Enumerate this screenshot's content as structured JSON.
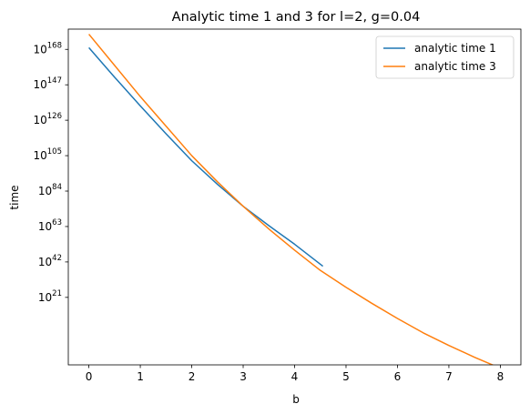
{
  "chart_data": {
    "type": "line",
    "title": "Analytic time 1 and 3 for l=2, g=0.04",
    "xlabel": "b",
    "ylabel": "time",
    "x_scale": "linear",
    "y_scale": "log",
    "xlim": [
      -0.4,
      8.4
    ],
    "ylim_log10": [
      -19,
      180
    ],
    "x_ticks": [
      0,
      1,
      2,
      3,
      4,
      5,
      6,
      7,
      8
    ],
    "y_ticks": [
      {
        "base": "10",
        "exp": "21",
        "value_log10": 21
      },
      {
        "base": "10",
        "exp": "42",
        "value_log10": 42
      },
      {
        "base": "10",
        "exp": "63",
        "value_log10": 63
      },
      {
        "base": "10",
        "exp": "84",
        "value_log10": 84
      },
      {
        "base": "10",
        "exp": "105",
        "value_log10": 105
      },
      {
        "base": "10",
        "exp": "126",
        "value_log10": 126
      },
      {
        "base": "10",
        "exp": "147",
        "value_log10": 147
      },
      {
        "base": "10",
        "exp": "168",
        "value_log10": 168
      }
    ],
    "grid": false,
    "legend_position": "top-right",
    "series": [
      {
        "name": "analytic time 1",
        "color": "#1f77b4",
        "x": [
          0,
          0.5,
          1,
          1.5,
          2,
          2.5,
          3,
          3.5,
          4,
          4.55
        ],
        "log10_y": [
          169,
          151.5,
          134.5,
          118,
          102,
          88,
          75,
          63.5,
          52.5,
          39.5
        ]
      },
      {
        "name": "analytic time 3",
        "color": "#ff7f0e",
        "x": [
          0,
          0.5,
          1,
          1.5,
          2,
          2.5,
          3,
          3.5,
          4,
          4.5,
          5,
          5.5,
          6,
          6.5,
          7,
          7.5,
          8
        ],
        "log10_y": [
          177,
          158.5,
          140,
          122.5,
          105,
          89.5,
          75,
          61.5,
          49,
          37,
          27,
          17.5,
          8.5,
          0,
          -7.5,
          -14.5,
          -21
        ]
      }
    ]
  }
}
